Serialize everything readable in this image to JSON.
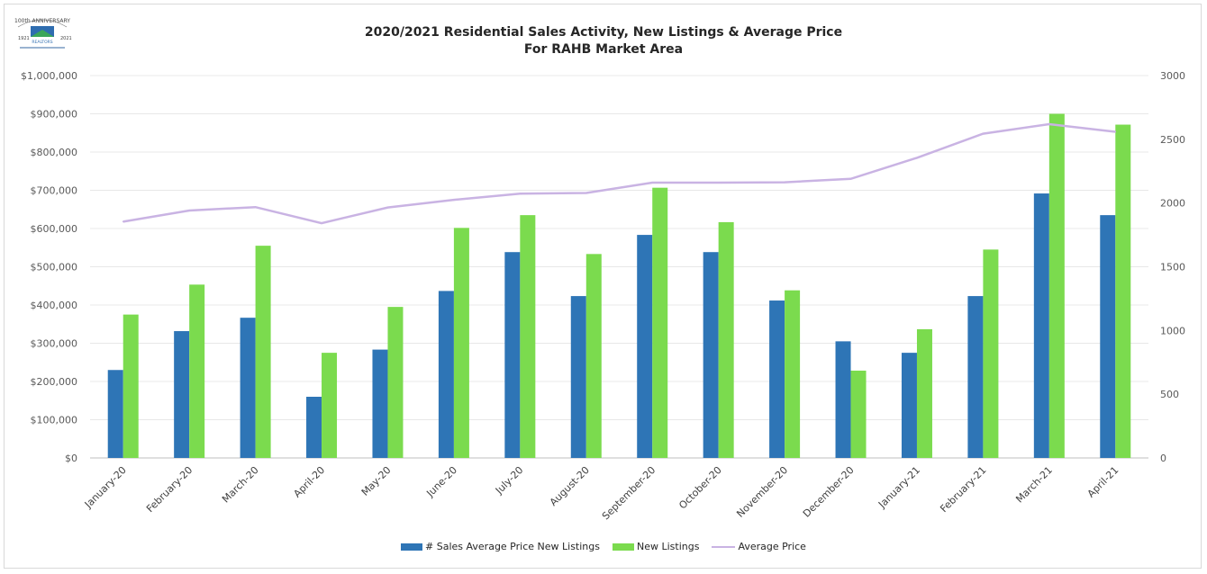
{
  "title_line1": "2020/2021 Residential Sales Activity, New Listings & Average Price",
  "title_line2": "For RAHB Market Area",
  "logo": {
    "top_text": "100th ANNIVERSARY",
    "year_left": "1921",
    "year_right": "2021",
    "org": "REALTORS"
  },
  "colors": {
    "sales": "#2e75b6",
    "listings": "#7bdb4e",
    "price": "#c9b3e3",
    "grid": "#e8e8e8"
  },
  "chart_data": {
    "type": "bar",
    "categories": [
      "January-20",
      "February-20",
      "March-20",
      "April-20",
      "May-20",
      "June-20",
      "July-20",
      "August-20",
      "September-20",
      "October-20",
      "November-20",
      "December-20",
      "January-21",
      "February-21",
      "March-21",
      "April-21"
    ],
    "series": [
      {
        "name": "# Sales Average Price New Listings",
        "type": "bar",
        "axis": "right",
        "values": [
          690,
          995,
          1100,
          480,
          850,
          1310,
          1615,
          1270,
          1750,
          1615,
          1235,
          915,
          825,
          1270,
          2075,
          1905
        ]
      },
      {
        "name": "New Listings",
        "type": "bar",
        "axis": "right",
        "values": [
          1125,
          1360,
          1665,
          825,
          1185,
          1805,
          1905,
          1600,
          2120,
          1850,
          1315,
          685,
          1010,
          1635,
          2700,
          2615
        ]
      },
      {
        "name": "Average Price",
        "type": "line",
        "axis": "left",
        "values": [
          618000,
          647000,
          656000,
          614000,
          655000,
          675000,
          691000,
          693000,
          720000,
          720000,
          721000,
          730000,
          785000,
          848000,
          873000,
          853000
        ]
      }
    ],
    "y_left": {
      "min": 0,
      "max": 1000000,
      "ticks": [
        "$0",
        "$100,000",
        "$200,000",
        "$300,000",
        "$400,000",
        "$500,000",
        "$600,000",
        "$700,000",
        "$800,000",
        "$900,000",
        "$1,000,000"
      ]
    },
    "y_right": {
      "min": 0,
      "max": 3000,
      "ticks": [
        "0",
        "500",
        "1000",
        "1500",
        "2000",
        "2500",
        "3000"
      ]
    },
    "grid": true,
    "legend_position": "bottom"
  }
}
